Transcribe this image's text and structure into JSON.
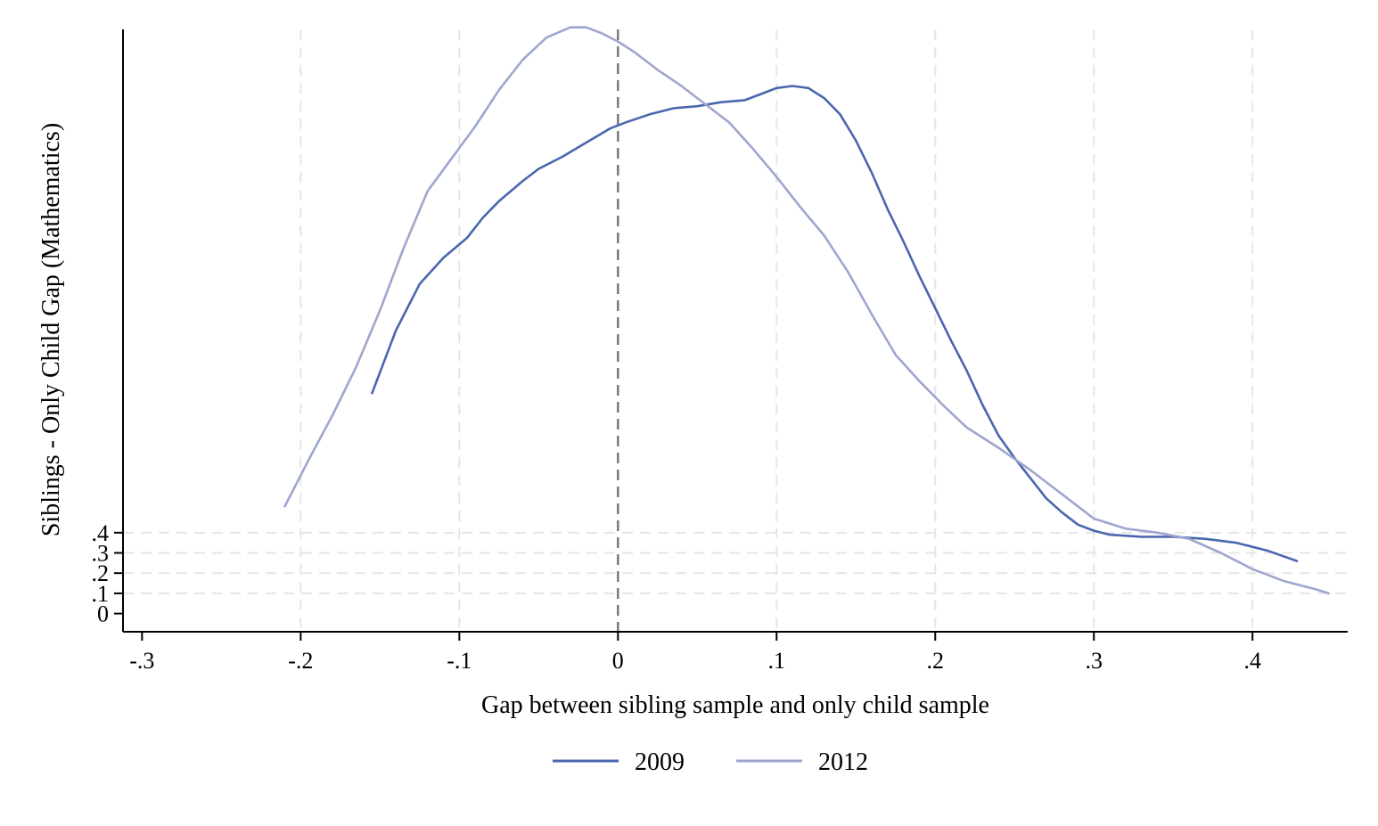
{
  "colors": {
    "series_2009": "#4a67ae",
    "series_2012": "#9ea6cf",
    "grid": "#e6e6e6",
    "zero_line": "#7a7a7a",
    "axis": "#000000"
  },
  "chart_data": {
    "type": "line",
    "title": "",
    "xlabel": "Gap between sibling sample and only child sample",
    "ylabel": "Siblings - Only Child Gap (Mathematics)",
    "xlim": [
      -0.312,
      0.46
    ],
    "ylim": [
      -0.09,
      2.89
    ],
    "x_ticks": [
      -0.3,
      -0.2,
      -0.1,
      0,
      0.1,
      0.2,
      0.3,
      0.4
    ],
    "x_tick_labels": [
      "-.3",
      "-.2",
      "-.1",
      "0",
      ".1",
      ".2",
      ".3",
      ".4"
    ],
    "y_ticks": [
      0,
      0.1,
      0.2,
      0.3,
      0.4
    ],
    "y_tick_labels": [
      "0",
      ".1",
      ".2",
      ".3",
      ".4"
    ],
    "x_grid": true,
    "y_grid": true,
    "reference_line_x": 0,
    "legend_position": "bottom",
    "series": [
      {
        "name": "2009",
        "x": [
          -0.155,
          -0.14,
          -0.125,
          -0.11,
          -0.095,
          -0.085,
          -0.075,
          -0.06,
          -0.05,
          -0.035,
          -0.02,
          -0.005,
          0.005,
          0.02,
          0.035,
          0.05,
          0.065,
          0.08,
          0.09,
          0.1,
          0.11,
          0.12,
          0.13,
          0.14,
          0.15,
          0.16,
          0.17,
          0.18,
          0.19,
          0.2,
          0.21,
          0.22,
          0.23,
          0.24,
          0.25,
          0.26,
          0.27,
          0.28,
          0.29,
          0.3,
          0.31,
          0.33,
          0.35,
          0.37,
          0.39,
          0.41,
          0.428
        ],
        "y": [
          1.09,
          1.4,
          1.63,
          1.76,
          1.86,
          1.96,
          2.04,
          2.14,
          2.2,
          2.26,
          2.33,
          2.4,
          2.43,
          2.47,
          2.5,
          2.51,
          2.53,
          2.54,
          2.57,
          2.6,
          2.61,
          2.6,
          2.55,
          2.47,
          2.34,
          2.18,
          2.0,
          1.84,
          1.67,
          1.51,
          1.35,
          1.2,
          1.03,
          0.88,
          0.77,
          0.67,
          0.57,
          0.5,
          0.44,
          0.41,
          0.39,
          0.38,
          0.38,
          0.37,
          0.35,
          0.31,
          0.26
        ]
      },
      {
        "name": "2012",
        "x": [
          -0.21,
          -0.195,
          -0.18,
          -0.165,
          -0.15,
          -0.135,
          -0.12,
          -0.105,
          -0.09,
          -0.075,
          -0.06,
          -0.045,
          -0.03,
          -0.02,
          -0.01,
          0.0,
          0.01,
          0.025,
          0.04,
          0.055,
          0.07,
          0.085,
          0.1,
          0.115,
          0.13,
          0.145,
          0.16,
          0.175,
          0.19,
          0.205,
          0.22,
          0.24,
          0.26,
          0.28,
          0.3,
          0.32,
          0.34,
          0.36,
          0.38,
          0.4,
          0.42,
          0.44,
          0.448
        ],
        "y": [
          0.53,
          0.76,
          0.98,
          1.22,
          1.5,
          1.81,
          2.09,
          2.25,
          2.41,
          2.59,
          2.74,
          2.85,
          2.9,
          2.9,
          2.87,
          2.83,
          2.78,
          2.69,
          2.61,
          2.52,
          2.43,
          2.3,
          2.16,
          2.01,
          1.87,
          1.69,
          1.48,
          1.28,
          1.15,
          1.03,
          0.92,
          0.82,
          0.71,
          0.59,
          0.47,
          0.42,
          0.4,
          0.37,
          0.3,
          0.22,
          0.16,
          0.12,
          0.1
        ]
      }
    ]
  }
}
